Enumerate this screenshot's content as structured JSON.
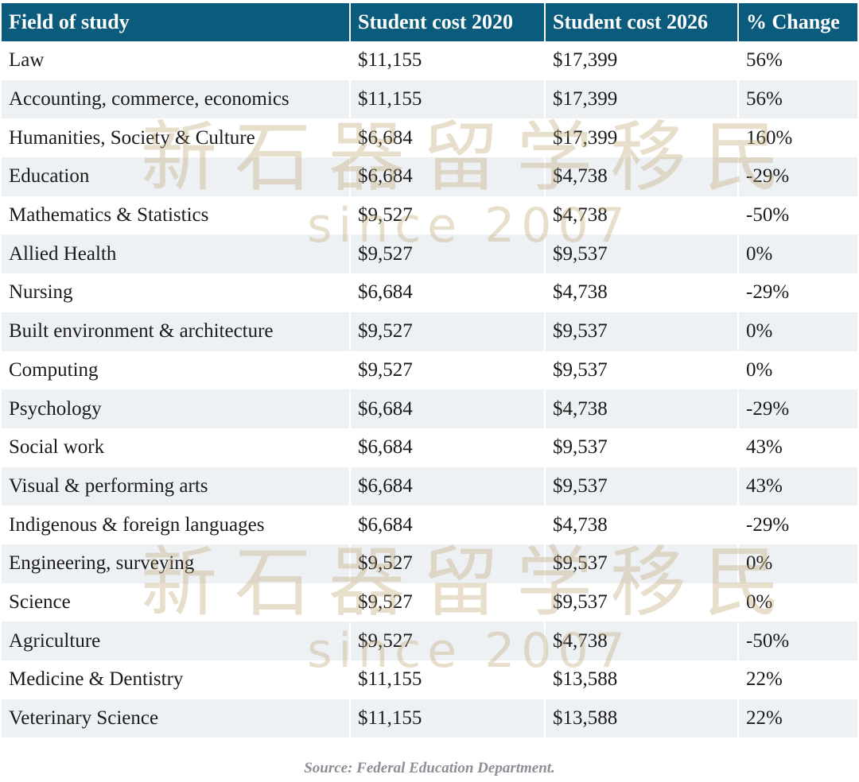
{
  "table": {
    "header": [
      "Field of study",
      "Student cost 2020",
      "Student cost 2026",
      "% Change"
    ],
    "rows": [
      [
        "Law",
        "$11,155",
        "$17,399",
        "56%"
      ],
      [
        "Accounting, commerce, economics",
        "$11,155",
        "$17,399",
        "56%"
      ],
      [
        "Humanities, Society & Culture",
        "$6,684",
        "$17,399",
        "160%"
      ],
      [
        "Education",
        "$6,684",
        "$4,738",
        "-29%"
      ],
      [
        "Mathematics & Statistics",
        "$9,527",
        "$4,738",
        "-50%"
      ],
      [
        "Allied Health",
        "$9,527",
        "$9,537",
        "0%"
      ],
      [
        "Nursing",
        "$6,684",
        "$4,738",
        "-29%"
      ],
      [
        "Built environment & architecture",
        "$9,527",
        "$9,537",
        "0%"
      ],
      [
        "Computing",
        "$9,527",
        "$9,537",
        "0%"
      ],
      [
        "Psychology",
        "$6,684",
        "$4,738",
        "-29%"
      ],
      [
        "Social work",
        "$6,684",
        "$9,537",
        "43%"
      ],
      [
        "Visual & performing arts",
        "$6,684",
        "$9,537",
        "43%"
      ],
      [
        "Indigenous & foreign languages",
        "$6,684",
        "$4,738",
        "-29%"
      ],
      [
        "Engineering, surveying",
        "$9,527",
        "$9,537",
        "0%"
      ],
      [
        "Science",
        "$9,527",
        "$9,537",
        "0%"
      ],
      [
        "Agriculture",
        "$9,527",
        "$4,738",
        "-50%"
      ],
      [
        "Medicine & Dentistry",
        "$11,155",
        "$13,588",
        "22%"
      ],
      [
        "Veterinary Science",
        "$11,155",
        "$13,588",
        "22%"
      ]
    ]
  },
  "source": "Source: Federal Education Department.",
  "watermark": {
    "name": "新石器留学移民",
    "since": "since 2007"
  }
}
